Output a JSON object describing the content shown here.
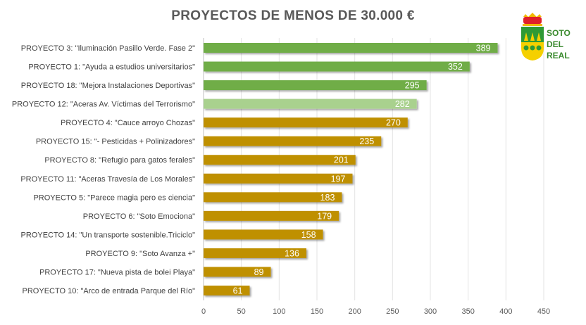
{
  "chart_data": {
    "type": "bar",
    "orientation": "horizontal",
    "title": "PROYECTOS  DE MENOS  DE 30.000 €",
    "categories": [
      "PROYECTO 3: \"Iluminación Pasillo Verde. Fase 2\"",
      "PROYECTO 1: \"Ayuda a estudios universitarios\"",
      "PROYECTO 18: \"Mejora Instalaciones Deportivas\"",
      "PROYECTO 12: \"Aceras Av. Víctimas del Terrorismo\"",
      "PROYECTO 4: \"Cauce arroyo Chozas\"",
      "PROYECTO 15: \"- Pesticidas + Polinizadores\"",
      "PROYECTO 8: \"Refugio para gatos ferales\"",
      "PROYECTO 11: \"Aceras Travesía de Los Morales\"",
      "PROYECTO 5: \"Parece magia pero es ciencia\"",
      "PROYECTO 6: \"Soto Emociona\"",
      "PROYECTO 14: \"Un transporte sostenible.Triciclo\"",
      "PROYECTO 9: \"Soto Avanza +\"",
      "PROYECTO 17: \"Nueva pista de bolei Playa\"",
      "PROYECTO 10: \"Arco de entrada Parque del Río\""
    ],
    "values": [
      389,
      352,
      295,
      282,
      270,
      235,
      201,
      197,
      183,
      179,
      158,
      136,
      89,
      61
    ],
    "bar_colors": [
      "#70ad47",
      "#70ad47",
      "#70ad47",
      "#a9d18e",
      "#bf9000",
      "#bf9000",
      "#bf9000",
      "#bf9000",
      "#bf9000",
      "#bf9000",
      "#bf9000",
      "#bf9000",
      "#bf9000",
      "#bf9000"
    ],
    "xlim": [
      0,
      450
    ],
    "xticks": [
      0,
      50,
      100,
      150,
      200,
      250,
      300,
      350,
      400,
      450
    ],
    "grid": true,
    "data_labels": true
  },
  "logo": {
    "line1": "SOTO",
    "line2": "DEL",
    "line3": "REAL"
  }
}
